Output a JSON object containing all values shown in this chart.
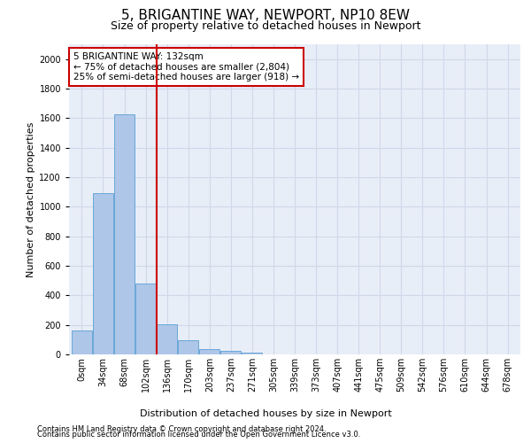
{
  "title1": "5, BRIGANTINE WAY, NEWPORT, NP10 8EW",
  "title2": "Size of property relative to detached houses in Newport",
  "xlabel": "Distribution of detached houses by size in Newport",
  "ylabel": "Number of detached properties",
  "footnote1": "Contains HM Land Registry data © Crown copyright and database right 2024.",
  "footnote2": "Contains public sector information licensed under the Open Government Licence v3.0.",
  "bar_labels": [
    "0sqm",
    "34sqm",
    "68sqm",
    "102sqm",
    "136sqm",
    "170sqm",
    "203sqm",
    "237sqm",
    "271sqm",
    "305sqm",
    "339sqm",
    "373sqm",
    "407sqm",
    "441sqm",
    "475sqm",
    "509sqm",
    "542sqm",
    "576sqm",
    "610sqm",
    "644sqm",
    "678sqm"
  ],
  "bar_values": [
    165,
    1090,
    1625,
    480,
    205,
    95,
    35,
    25,
    15,
    0,
    0,
    0,
    0,
    0,
    0,
    0,
    0,
    0,
    0,
    0,
    0
  ],
  "bar_color": "#aec6e8",
  "bar_edge_color": "#5a9fd4",
  "ylim": [
    0,
    2100
  ],
  "yticks": [
    0,
    200,
    400,
    600,
    800,
    1000,
    1200,
    1400,
    1600,
    1800,
    2000
  ],
  "property_line_color": "#cc0000",
  "annotation_text": "5 BRIGANTINE WAY: 132sqm\n← 75% of detached houses are smaller (2,804)\n25% of semi-detached houses are larger (918) →",
  "annotation_box_color": "#ffffff",
  "annotation_box_edge": "#cc0000",
  "grid_color": "#d0d8e8",
  "background_color": "#e8eef8",
  "title1_fontsize": 11,
  "title2_fontsize": 9,
  "axis_label_fontsize": 8,
  "tick_fontsize": 7,
  "annotation_fontsize": 7.5,
  "footnote_fontsize": 6
}
